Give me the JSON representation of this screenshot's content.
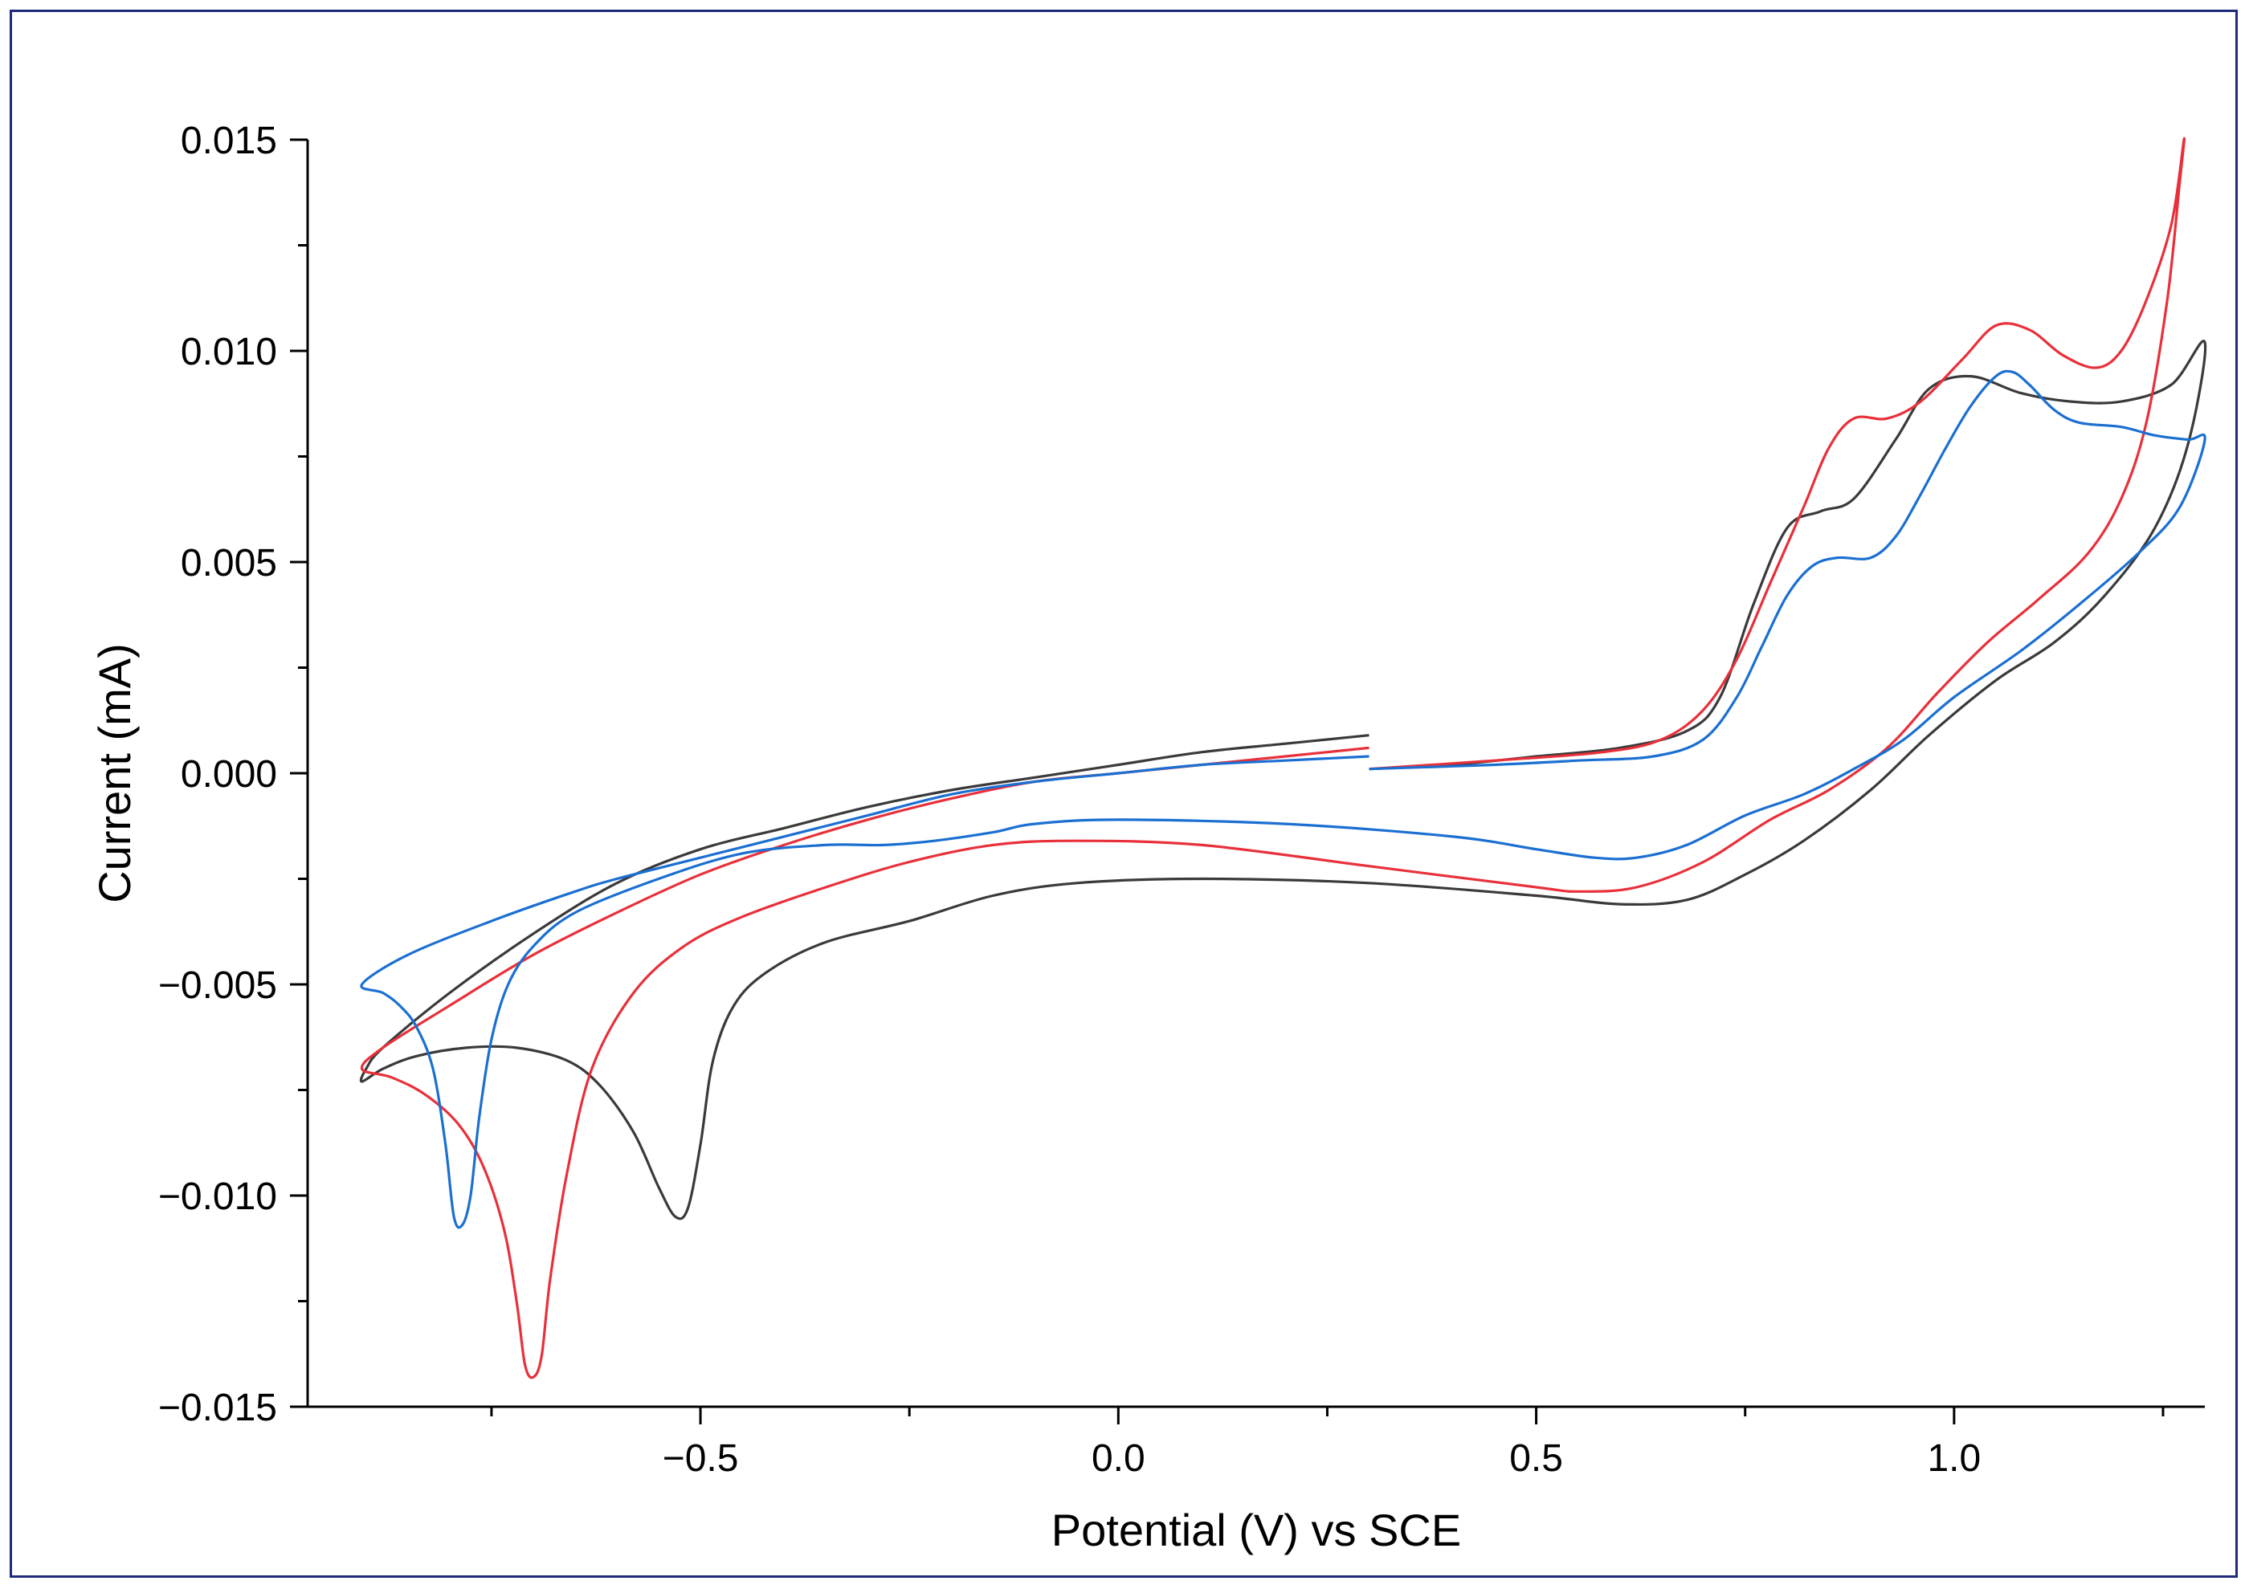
{
  "chart_data": {
    "type": "line",
    "title": "",
    "xlabel": "Potential (V) vs SCE",
    "ylabel": "Current (mA)",
    "xlim": [
      -0.97,
      1.3
    ],
    "ylim": [
      -0.015,
      0.015
    ],
    "x_ticks": [
      -0.5,
      0.0,
      0.5,
      1.0
    ],
    "x_tick_labels": [
      "−0.5",
      "0.0",
      "0.5",
      "1.0"
    ],
    "x_minor_ticks": [
      -0.75,
      -0.25,
      0.25,
      0.75,
      1.25
    ],
    "y_ticks": [
      -0.015,
      -0.01,
      -0.005,
      0.0,
      0.005,
      0.01,
      0.015
    ],
    "y_tick_labels": [
      "−0.015",
      "−0.010",
      "−0.005",
      "0.000",
      "0.005",
      "0.010",
      "0.015"
    ],
    "y_minor_ticks": [
      -0.0125,
      -0.0075,
      -0.0025,
      0.0025,
      0.0075,
      0.0125
    ],
    "grid": false,
    "legend": "none",
    "series": [
      {
        "name": "black",
        "color": "#3a3a3a",
        "points": [
          [
            0.3,
            0.0009
          ],
          [
            0.2,
            0.0007
          ],
          [
            0.1,
            0.0005
          ],
          [
            0.0,
            0.0002
          ],
          [
            -0.1,
            -0.0001
          ],
          [
            -0.2,
            -0.0004
          ],
          [
            -0.3,
            -0.0008
          ],
          [
            -0.4,
            -0.0013
          ],
          [
            -0.5,
            -0.0018
          ],
          [
            -0.6,
            -0.0026
          ],
          [
            -0.7,
            -0.0038
          ],
          [
            -0.8,
            -0.0052
          ],
          [
            -0.88,
            -0.0065
          ],
          [
            -0.9,
            -0.007
          ],
          [
            -0.905,
            -0.0073
          ],
          [
            -0.88,
            -0.007
          ],
          [
            -0.84,
            -0.0067
          ],
          [
            -0.78,
            -0.0065
          ],
          [
            -0.72,
            -0.0065
          ],
          [
            -0.66,
            -0.0068
          ],
          [
            -0.62,
            -0.0074
          ],
          [
            -0.58,
            -0.0085
          ],
          [
            -0.55,
            -0.0098
          ],
          [
            -0.53,
            -0.0105
          ],
          [
            -0.515,
            -0.0103
          ],
          [
            -0.5,
            -0.0088
          ],
          [
            -0.485,
            -0.0068
          ],
          [
            -0.46,
            -0.0055
          ],
          [
            -0.42,
            -0.0047
          ],
          [
            -0.35,
            -0.004
          ],
          [
            -0.25,
            -0.0035
          ],
          [
            -0.15,
            -0.0029
          ],
          [
            -0.05,
            -0.0026
          ],
          [
            0.1,
            -0.0025
          ],
          [
            0.3,
            -0.0026
          ],
          [
            0.5,
            -0.0029
          ],
          [
            0.6,
            -0.0031
          ],
          [
            0.68,
            -0.003
          ],
          [
            0.75,
            -0.0024
          ],
          [
            0.82,
            -0.0016
          ],
          [
            0.9,
            -0.0004
          ],
          [
            0.97,
            0.0009
          ],
          [
            1.05,
            0.0022
          ],
          [
            1.12,
            0.0031
          ],
          [
            1.18,
            0.0042
          ],
          [
            1.24,
            0.0058
          ],
          [
            1.28,
            0.0078
          ],
          [
            1.3,
            0.0102
          ],
          [
            1.26,
            0.0092
          ],
          [
            1.2,
            0.0088
          ],
          [
            1.14,
            0.0088
          ],
          [
            1.08,
            0.009
          ],
          [
            1.02,
            0.0094
          ],
          [
            0.97,
            0.0091
          ],
          [
            0.93,
            0.0079
          ],
          [
            0.88,
            0.0065
          ],
          [
            0.84,
            0.0062
          ],
          [
            0.8,
            0.0058
          ],
          [
            0.76,
            0.004
          ],
          [
            0.72,
            0.0018
          ],
          [
            0.68,
            0.001
          ],
          [
            0.6,
            0.0006
          ],
          [
            0.5,
            0.0004
          ],
          [
            0.4,
            0.0002
          ],
          [
            0.3,
            0.0001
          ]
        ]
      },
      {
        "name": "red",
        "color": "#e8303a",
        "points": [
          [
            0.3,
            0.0006
          ],
          [
            0.2,
            0.0004
          ],
          [
            0.1,
            0.0002
          ],
          [
            0.0,
            0.0
          ],
          [
            -0.1,
            -0.0002
          ],
          [
            -0.2,
            -0.0006
          ],
          [
            -0.3,
            -0.0011
          ],
          [
            -0.4,
            -0.0017
          ],
          [
            -0.5,
            -0.0024
          ],
          [
            -0.6,
            -0.0033
          ],
          [
            -0.7,
            -0.0043
          ],
          [
            -0.8,
            -0.0055
          ],
          [
            -0.88,
            -0.0065
          ],
          [
            -0.905,
            -0.007
          ],
          [
            -0.87,
            -0.0072
          ],
          [
            -0.83,
            -0.0076
          ],
          [
            -0.79,
            -0.0083
          ],
          [
            -0.76,
            -0.0093
          ],
          [
            -0.735,
            -0.0108
          ],
          [
            -0.72,
            -0.0125
          ],
          [
            -0.71,
            -0.014
          ],
          [
            -0.7,
            -0.0143
          ],
          [
            -0.69,
            -0.0138
          ],
          [
            -0.68,
            -0.012
          ],
          [
            -0.66,
            -0.0095
          ],
          [
            -0.63,
            -0.007
          ],
          [
            -0.58,
            -0.0052
          ],
          [
            -0.52,
            -0.0041
          ],
          [
            -0.45,
            -0.0034
          ],
          [
            -0.35,
            -0.0027
          ],
          [
            -0.25,
            -0.0021
          ],
          [
            -0.15,
            -0.0017
          ],
          [
            -0.05,
            -0.0016
          ],
          [
            0.1,
            -0.0017
          ],
          [
            0.3,
            -0.0022
          ],
          [
            0.5,
            -0.0027
          ],
          [
            0.55,
            -0.0028
          ],
          [
            0.62,
            -0.0027
          ],
          [
            0.7,
            -0.0021
          ],
          [
            0.78,
            -0.0011
          ],
          [
            0.85,
            -0.0004
          ],
          [
            0.92,
            0.0006
          ],
          [
            0.98,
            0.0019
          ],
          [
            1.04,
            0.0031
          ],
          [
            1.1,
            0.0041
          ],
          [
            1.16,
            0.0052
          ],
          [
            1.2,
            0.0065
          ],
          [
            1.23,
            0.0083
          ],
          [
            1.255,
            0.0112
          ],
          [
            1.27,
            0.014
          ],
          [
            1.275,
            0.015
          ],
          [
            1.26,
            0.013
          ],
          [
            1.23,
            0.0112
          ],
          [
            1.2,
            0.01
          ],
          [
            1.17,
            0.0096
          ],
          [
            1.13,
            0.0099
          ],
          [
            1.09,
            0.0105
          ],
          [
            1.05,
            0.0106
          ],
          [
            1.01,
            0.0098
          ],
          [
            0.96,
            0.0088
          ],
          [
            0.92,
            0.0084
          ],
          [
            0.88,
            0.0084
          ],
          [
            0.85,
            0.0077
          ],
          [
            0.82,
            0.0063
          ],
          [
            0.78,
            0.0045
          ],
          [
            0.74,
            0.0027
          ],
          [
            0.7,
            0.0015
          ],
          [
            0.65,
            0.0008
          ],
          [
            0.58,
            0.0005
          ],
          [
            0.45,
            0.0003
          ],
          [
            0.3,
            0.0001
          ]
        ]
      },
      {
        "name": "blue",
        "color": "#1a6fd1",
        "points": [
          [
            0.3,
            0.0004
          ],
          [
            0.2,
            0.0003
          ],
          [
            0.1,
            0.0002
          ],
          [
            0.0,
            0.0
          ],
          [
            -0.1,
            -0.0002
          ],
          [
            -0.2,
            -0.0005
          ],
          [
            -0.3,
            -0.001
          ],
          [
            -0.4,
            -0.0015
          ],
          [
            -0.5,
            -0.002
          ],
          [
            -0.6,
            -0.0025
          ],
          [
            -0.65,
            -0.0028
          ],
          [
            -0.75,
            -0.0035
          ],
          [
            -0.85,
            -0.0043
          ],
          [
            -0.905,
            -0.005
          ],
          [
            -0.88,
            -0.0052
          ],
          [
            -0.86,
            -0.0055
          ],
          [
            -0.84,
            -0.006
          ],
          [
            -0.82,
            -0.007
          ],
          [
            -0.805,
            -0.0088
          ],
          [
            -0.795,
            -0.0105
          ],
          [
            -0.785,
            -0.0107
          ],
          [
            -0.775,
            -0.01
          ],
          [
            -0.765,
            -0.0082
          ],
          [
            -0.75,
            -0.0063
          ],
          [
            -0.73,
            -0.005
          ],
          [
            -0.7,
            -0.0041
          ],
          [
            -0.65,
            -0.0033
          ],
          [
            -0.55,
            -0.0025
          ],
          [
            -0.45,
            -0.0019
          ],
          [
            -0.35,
            -0.0017
          ],
          [
            -0.28,
            -0.0017
          ],
          [
            -0.22,
            -0.0016
          ],
          [
            -0.15,
            -0.0014
          ],
          [
            -0.1,
            -0.0012
          ],
          [
            0.0,
            -0.0011
          ],
          [
            0.2,
            -0.0012
          ],
          [
            0.4,
            -0.0015
          ],
          [
            0.5,
            -0.0018
          ],
          [
            0.57,
            -0.002
          ],
          [
            0.62,
            -0.002
          ],
          [
            0.68,
            -0.0017
          ],
          [
            0.75,
            -0.001
          ],
          [
            0.82,
            -0.0005
          ],
          [
            0.88,
            0.0001
          ],
          [
            0.94,
            0.0008
          ],
          [
            1.0,
            0.0018
          ],
          [
            1.08,
            0.0029
          ],
          [
            1.15,
            0.004
          ],
          [
            1.22,
            0.0052
          ],
          [
            1.27,
            0.0063
          ],
          [
            1.3,
            0.0079
          ],
          [
            1.28,
            0.0079
          ],
          [
            1.24,
            0.008
          ],
          [
            1.2,
            0.0082
          ],
          [
            1.15,
            0.0083
          ],
          [
            1.12,
            0.0086
          ],
          [
            1.09,
            0.0092
          ],
          [
            1.07,
            0.0095
          ],
          [
            1.05,
            0.0094
          ],
          [
            1.02,
            0.0087
          ],
          [
            0.99,
            0.0077
          ],
          [
            0.96,
            0.0066
          ],
          [
            0.93,
            0.0056
          ],
          [
            0.9,
            0.0051
          ],
          [
            0.86,
            0.0051
          ],
          [
            0.83,
            0.0049
          ],
          [
            0.8,
            0.0042
          ],
          [
            0.77,
            0.003
          ],
          [
            0.74,
            0.0018
          ],
          [
            0.7,
            0.0008
          ],
          [
            0.64,
            0.0004
          ],
          [
            0.55,
            0.0003
          ],
          [
            0.45,
            0.0002
          ],
          [
            0.3,
            0.0001
          ]
        ]
      }
    ]
  },
  "colors": {
    "frame": "#1f2a7a",
    "axis": "#000000",
    "background": "#ffffff"
  }
}
